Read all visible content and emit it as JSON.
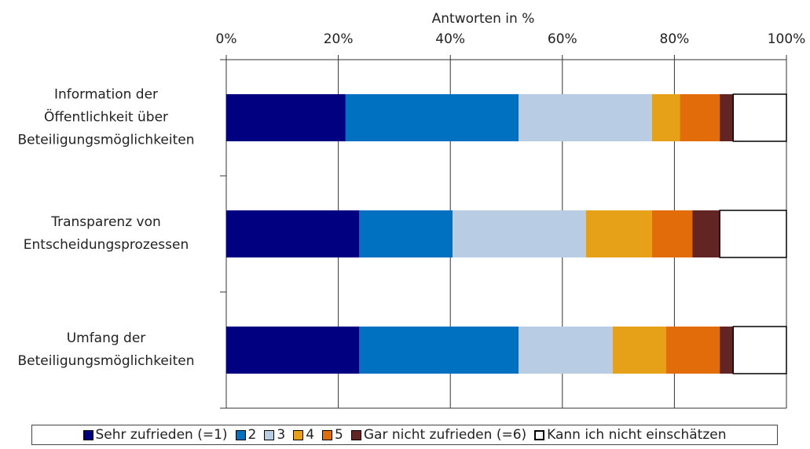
{
  "chart_data": {
    "type": "stacked-bar-horizontal",
    "xlabel": "Antworten in %",
    "categories": [
      "Information der\nÖffentlichkeit über\nBeteiligungsmöglichkeiten",
      "Transparenz von\nEntscheidungsprozessen",
      "Umfang der\nBeteiligungsmöglichkeiten"
    ],
    "series": [
      {
        "name": "Sehr zufrieden (=1)",
        "color": "#000080",
        "values": [
          21.3,
          23.7,
          23.7
        ]
      },
      {
        "name": "2",
        "color": "#0070c0",
        "values": [
          30.9,
          16.7,
          28.5
        ]
      },
      {
        "name": "3",
        "color": "#b8cce4",
        "values": [
          23.8,
          23.8,
          16.8
        ]
      },
      {
        "name": "4",
        "color": "#e6a118",
        "values": [
          5.0,
          11.8,
          9.5
        ]
      },
      {
        "name": "5",
        "color": "#e36c0a",
        "values": [
          7.1,
          7.2,
          9.6
        ]
      },
      {
        "name": "Gar nicht zufrieden (=6)",
        "color": "#632523",
        "values": [
          2.4,
          4.9,
          2.4
        ]
      },
      {
        "name": "Kann ich nicht einschätzen",
        "color": "#ffffff",
        "values": [
          9.5,
          11.9,
          9.5
        ]
      }
    ],
    "xlim": [
      0,
      100
    ],
    "xticks": [
      {
        "value": 0,
        "label": "0%"
      },
      {
        "value": 20,
        "label": "20%"
      },
      {
        "value": 40,
        "label": "40%"
      },
      {
        "value": 60,
        "label": "60%"
      },
      {
        "value": 80,
        "label": "80%"
      },
      {
        "value": 100,
        "label": "100%"
      }
    ],
    "grid": true,
    "legend": "bottom"
  }
}
